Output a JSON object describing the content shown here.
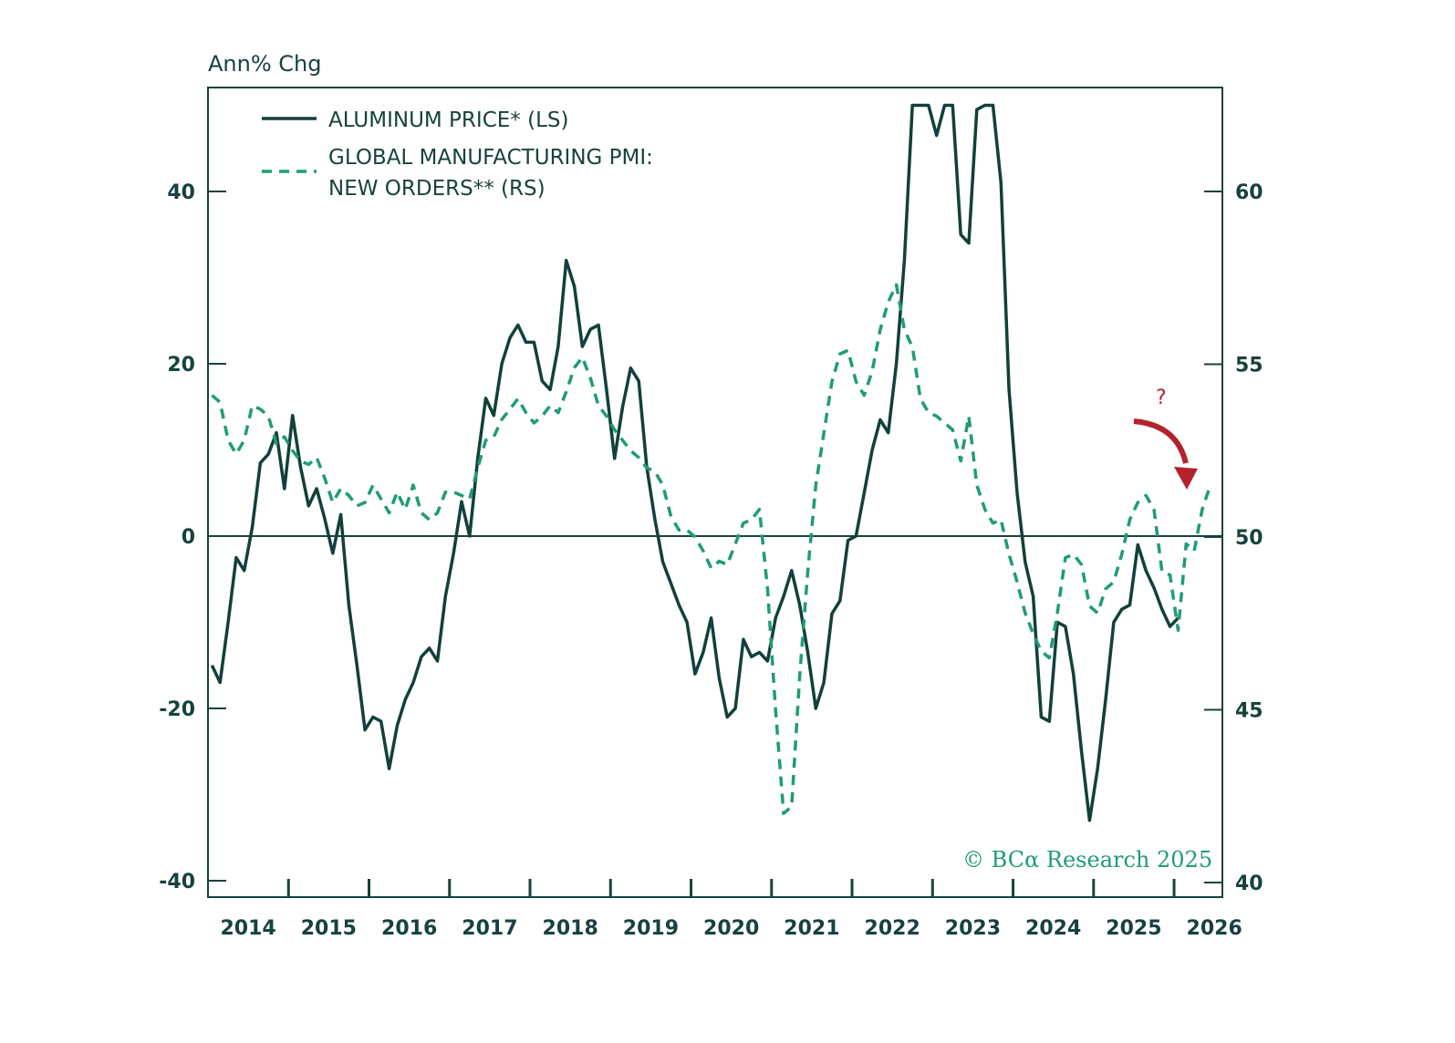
{
  "chart_data": {
    "type": "line",
    "title": "",
    "y_axis_title": "Ann% Chg",
    "x_ticks": [
      "2014",
      "2015",
      "2016",
      "2017",
      "2018",
      "2019",
      "2020",
      "2021",
      "2022",
      "2023",
      "2024",
      "2025",
      "2026"
    ],
    "xlim": [
      2014.0,
      2026.6
    ],
    "left_axis": {
      "label": "Ann% Chg",
      "ylim": [
        -40,
        50
      ],
      "ticks": [
        -40,
        -20,
        0,
        20,
        40
      ],
      "tick_labels": [
        "-40",
        "-20",
        "0",
        "20",
        "40"
      ]
    },
    "right_axis": {
      "label": "",
      "ylim": [
        40,
        62.1
      ],
      "ticks": [
        40,
        45,
        50,
        55,
        60
      ],
      "tick_labels": [
        "40",
        "45",
        "50",
        "55",
        "60"
      ]
    },
    "legend": {
      "placement": "top-left",
      "entries": [
        {
          "label": "ALUMINUM PRICE* (LS)",
          "style": "solid"
        },
        {
          "label_line1": "GLOBAL MANUFACTURING PMI:",
          "label_line2": "NEW ORDERS** (RS)",
          "style": "dashed"
        }
      ]
    },
    "series": [
      {
        "name": "ALUMINUM PRICE* (LS)",
        "axis": "left",
        "color": "#12403b",
        "points": [
          [
            2014.05,
            -15
          ],
          [
            2014.15,
            -17
          ],
          [
            2014.25,
            -10
          ],
          [
            2014.35,
            -2.5
          ],
          [
            2014.45,
            -4
          ],
          [
            2014.55,
            1
          ],
          [
            2014.65,
            8.5
          ],
          [
            2014.75,
            9.5
          ],
          [
            2014.85,
            12
          ],
          [
            2014.95,
            5.5
          ],
          [
            2015.05,
            14
          ],
          [
            2015.15,
            8
          ],
          [
            2015.25,
            3.5
          ],
          [
            2015.35,
            5.5
          ],
          [
            2015.45,
            2
          ],
          [
            2015.55,
            -2
          ],
          [
            2015.65,
            2.5
          ],
          [
            2015.75,
            -8
          ],
          [
            2015.85,
            -15
          ],
          [
            2015.95,
            -22.5
          ],
          [
            2016.05,
            -21
          ],
          [
            2016.15,
            -21.5
          ],
          [
            2016.25,
            -27
          ],
          [
            2016.35,
            -22
          ],
          [
            2016.45,
            -19
          ],
          [
            2016.55,
            -17
          ],
          [
            2016.65,
            -14
          ],
          [
            2016.75,
            -13
          ],
          [
            2016.85,
            -14.5
          ],
          [
            2016.95,
            -7
          ],
          [
            2017.05,
            -2
          ],
          [
            2017.15,
            4
          ],
          [
            2017.25,
            0
          ],
          [
            2017.35,
            9
          ],
          [
            2017.45,
            16
          ],
          [
            2017.55,
            14
          ],
          [
            2017.65,
            20
          ],
          [
            2017.75,
            23
          ],
          [
            2017.85,
            24.5
          ],
          [
            2017.95,
            22.5
          ],
          [
            2018.05,
            22.5
          ],
          [
            2018.15,
            18
          ],
          [
            2018.25,
            17
          ],
          [
            2018.35,
            22
          ],
          [
            2018.45,
            32
          ],
          [
            2018.55,
            29
          ],
          [
            2018.65,
            22
          ],
          [
            2018.75,
            24
          ],
          [
            2018.85,
            24.5
          ],
          [
            2018.95,
            17
          ],
          [
            2019.05,
            9
          ],
          [
            2019.15,
            15
          ],
          [
            2019.25,
            19.5
          ],
          [
            2019.35,
            18
          ],
          [
            2019.45,
            8
          ],
          [
            2019.55,
            2
          ],
          [
            2019.65,
            -3
          ],
          [
            2019.75,
            -5.5
          ],
          [
            2019.85,
            -8
          ],
          [
            2019.95,
            -10
          ],
          [
            2020.05,
            -16
          ],
          [
            2020.15,
            -13.5
          ],
          [
            2020.25,
            -9.5
          ],
          [
            2020.35,
            -16.5
          ],
          [
            2020.45,
            -21
          ],
          [
            2020.55,
            -20
          ],
          [
            2020.65,
            -12
          ],
          [
            2020.75,
            -14
          ],
          [
            2020.85,
            -13.5
          ],
          [
            2020.95,
            -14.5
          ],
          [
            2021.05,
            -9.5
          ],
          [
            2021.15,
            -7
          ],
          [
            2021.25,
            -4
          ],
          [
            2021.35,
            -8
          ],
          [
            2021.45,
            -13.5
          ],
          [
            2021.55,
            -20
          ],
          [
            2021.65,
            -17
          ],
          [
            2021.75,
            -9
          ],
          [
            2021.85,
            -7.5
          ],
          [
            2021.95,
            -0.5
          ],
          [
            2022.05,
            0
          ],
          [
            2022.15,
            5
          ],
          [
            2022.25,
            10
          ],
          [
            2022.35,
            13.5
          ],
          [
            2022.45,
            12
          ],
          [
            2022.55,
            20
          ],
          [
            2022.65,
            32
          ],
          [
            2022.75,
            50
          ],
          [
            2022.85,
            50
          ],
          [
            2022.95,
            50
          ],
          [
            2023.05,
            46.5
          ],
          [
            2023.15,
            50
          ],
          [
            2023.25,
            50
          ],
          [
            2023.35,
            35
          ],
          [
            2023.45,
            34
          ],
          [
            2023.55,
            49.5
          ],
          [
            2023.65,
            50
          ],
          [
            2023.75,
            50
          ],
          [
            2023.85,
            41
          ],
          [
            2023.95,
            17
          ],
          [
            2024.05,
            5
          ],
          [
            2024.15,
            -3
          ],
          [
            2024.25,
            -7
          ],
          [
            2024.35,
            -21
          ],
          [
            2024.45,
            -21.5
          ],
          [
            2024.55,
            -10
          ],
          [
            2024.65,
            -10.5
          ],
          [
            2024.75,
            -16
          ],
          [
            2024.85,
            -25
          ],
          [
            2024.95,
            -33
          ],
          [
            2025.05,
            -27
          ],
          [
            2025.15,
            -19
          ],
          [
            2025.25,
            -10
          ],
          [
            2025.35,
            -8.5
          ],
          [
            2025.45,
            -8
          ],
          [
            2025.55,
            -1
          ],
          [
            2025.65,
            -4
          ],
          [
            2025.75,
            -6
          ],
          [
            2025.85,
            -8.5
          ],
          [
            2025.95,
            -10.5
          ],
          [
            2026.05,
            -9.5
          ]
        ]
      },
      {
        "name": "GLOBAL MANUFACTURING PMI: NEW ORDERS** (RS)",
        "axis": "right",
        "color": "#1f9b78",
        "points": [
          [
            2014.05,
            54.1
          ],
          [
            2014.15,
            53.9
          ],
          [
            2014.25,
            52.8
          ],
          [
            2014.35,
            52.4
          ],
          [
            2014.45,
            52.8
          ],
          [
            2014.55,
            53.8
          ],
          [
            2014.65,
            53.7
          ],
          [
            2014.75,
            53.5
          ],
          [
            2014.85,
            52.7
          ],
          [
            2014.95,
            52.9
          ],
          [
            2015.05,
            52.5
          ],
          [
            2015.15,
            52.2
          ],
          [
            2015.25,
            52.1
          ],
          [
            2015.35,
            52.3
          ],
          [
            2015.45,
            51.7
          ],
          [
            2015.55,
            51.0
          ],
          [
            2015.65,
            51.4
          ],
          [
            2015.75,
            51.2
          ],
          [
            2015.85,
            50.9
          ],
          [
            2015.95,
            51.0
          ],
          [
            2016.05,
            51.5
          ],
          [
            2016.15,
            51.1
          ],
          [
            2016.25,
            50.7
          ],
          [
            2016.35,
            51.3
          ],
          [
            2016.45,
            50.8
          ],
          [
            2016.55,
            51.5
          ],
          [
            2016.65,
            50.7
          ],
          [
            2016.75,
            50.5
          ],
          [
            2016.85,
            50.7
          ],
          [
            2016.95,
            51.3
          ],
          [
            2017.05,
            51.3
          ],
          [
            2017.15,
            51.2
          ],
          [
            2017.25,
            51.1
          ],
          [
            2017.35,
            52.0
          ],
          [
            2017.45,
            52.8
          ],
          [
            2017.55,
            52.9
          ],
          [
            2017.65,
            53.4
          ],
          [
            2017.75,
            53.7
          ],
          [
            2017.85,
            54.0
          ],
          [
            2017.95,
            53.6
          ],
          [
            2018.05,
            53.3
          ],
          [
            2018.15,
            53.5
          ],
          [
            2018.25,
            53.8
          ],
          [
            2018.35,
            53.6
          ],
          [
            2018.45,
            54.2
          ],
          [
            2018.55,
            54.9
          ],
          [
            2018.65,
            55.2
          ],
          [
            2018.75,
            54.6
          ],
          [
            2018.85,
            53.8
          ],
          [
            2018.95,
            53.5
          ],
          [
            2019.05,
            53.1
          ],
          [
            2019.15,
            52.8
          ],
          [
            2019.25,
            52.5
          ],
          [
            2019.35,
            52.3
          ],
          [
            2019.45,
            52.0
          ],
          [
            2019.55,
            51.9
          ],
          [
            2019.65,
            51.5
          ],
          [
            2019.75,
            50.6
          ],
          [
            2019.85,
            50.2
          ],
          [
            2019.95,
            50.2
          ],
          [
            2020.05,
            50.0
          ],
          [
            2020.15,
            49.6
          ],
          [
            2020.25,
            49.1
          ],
          [
            2020.35,
            49.3
          ],
          [
            2020.45,
            49.2
          ],
          [
            2020.55,
            49.8
          ],
          [
            2020.65,
            50.4
          ],
          [
            2020.75,
            50.5
          ],
          [
            2020.85,
            50.8
          ],
          [
            2020.95,
            48.5
          ],
          [
            2021.05,
            45.0
          ],
          [
            2021.15,
            42.0
          ],
          [
            2021.25,
            42.2
          ],
          [
            2021.35,
            46.0
          ],
          [
            2021.45,
            49.0
          ],
          [
            2021.55,
            51.5
          ],
          [
            2021.65,
            53.0
          ],
          [
            2021.75,
            54.5
          ],
          [
            2021.85,
            55.3
          ],
          [
            2021.95,
            55.4
          ],
          [
            2022.05,
            54.5
          ],
          [
            2022.15,
            54.1
          ],
          [
            2022.25,
            54.8
          ],
          [
            2022.35,
            56.0
          ],
          [
            2022.45,
            56.8
          ],
          [
            2022.55,
            57.3
          ],
          [
            2022.65,
            56.0
          ],
          [
            2022.75,
            55.5
          ],
          [
            2022.85,
            54.0
          ],
          [
            2022.95,
            53.6
          ],
          [
            2023.05,
            53.5
          ],
          [
            2023.15,
            53.3
          ],
          [
            2023.25,
            53.1
          ],
          [
            2023.35,
            52.2
          ],
          [
            2023.45,
            53.5
          ],
          [
            2023.55,
            51.5
          ],
          [
            2023.65,
            50.8
          ],
          [
            2023.75,
            50.4
          ],
          [
            2023.85,
            50.5
          ],
          [
            2023.95,
            49.5
          ],
          [
            2024.05,
            48.7
          ],
          [
            2024.15,
            47.8
          ],
          [
            2024.25,
            47.2
          ],
          [
            2024.35,
            46.7
          ],
          [
            2024.45,
            46.5
          ],
          [
            2024.55,
            47.8
          ],
          [
            2024.65,
            49.4
          ],
          [
            2024.75,
            49.5
          ],
          [
            2024.85,
            49.2
          ],
          [
            2024.95,
            48.0
          ],
          [
            2025.05,
            47.8
          ],
          [
            2025.15,
            48.5
          ],
          [
            2025.25,
            48.7
          ],
          [
            2025.35,
            49.5
          ],
          [
            2025.45,
            50.5
          ],
          [
            2025.55,
            51.0
          ],
          [
            2025.65,
            51.2
          ],
          [
            2025.75,
            50.8
          ],
          [
            2025.85,
            49.0
          ],
          [
            2025.95,
            48.9
          ],
          [
            2026.05,
            47.3
          ],
          [
            2026.15,
            49.8
          ],
          [
            2026.25,
            49.6
          ],
          [
            2026.35,
            50.8
          ],
          [
            2026.45,
            51.5
          ]
        ]
      }
    ],
    "annotations": [
      {
        "text": "?",
        "color": "#b3232b",
        "description": "downward arrow indicating expected decline"
      },
      {
        "text": "© BCα Research 2025",
        "color": "#1f9b78"
      }
    ]
  }
}
